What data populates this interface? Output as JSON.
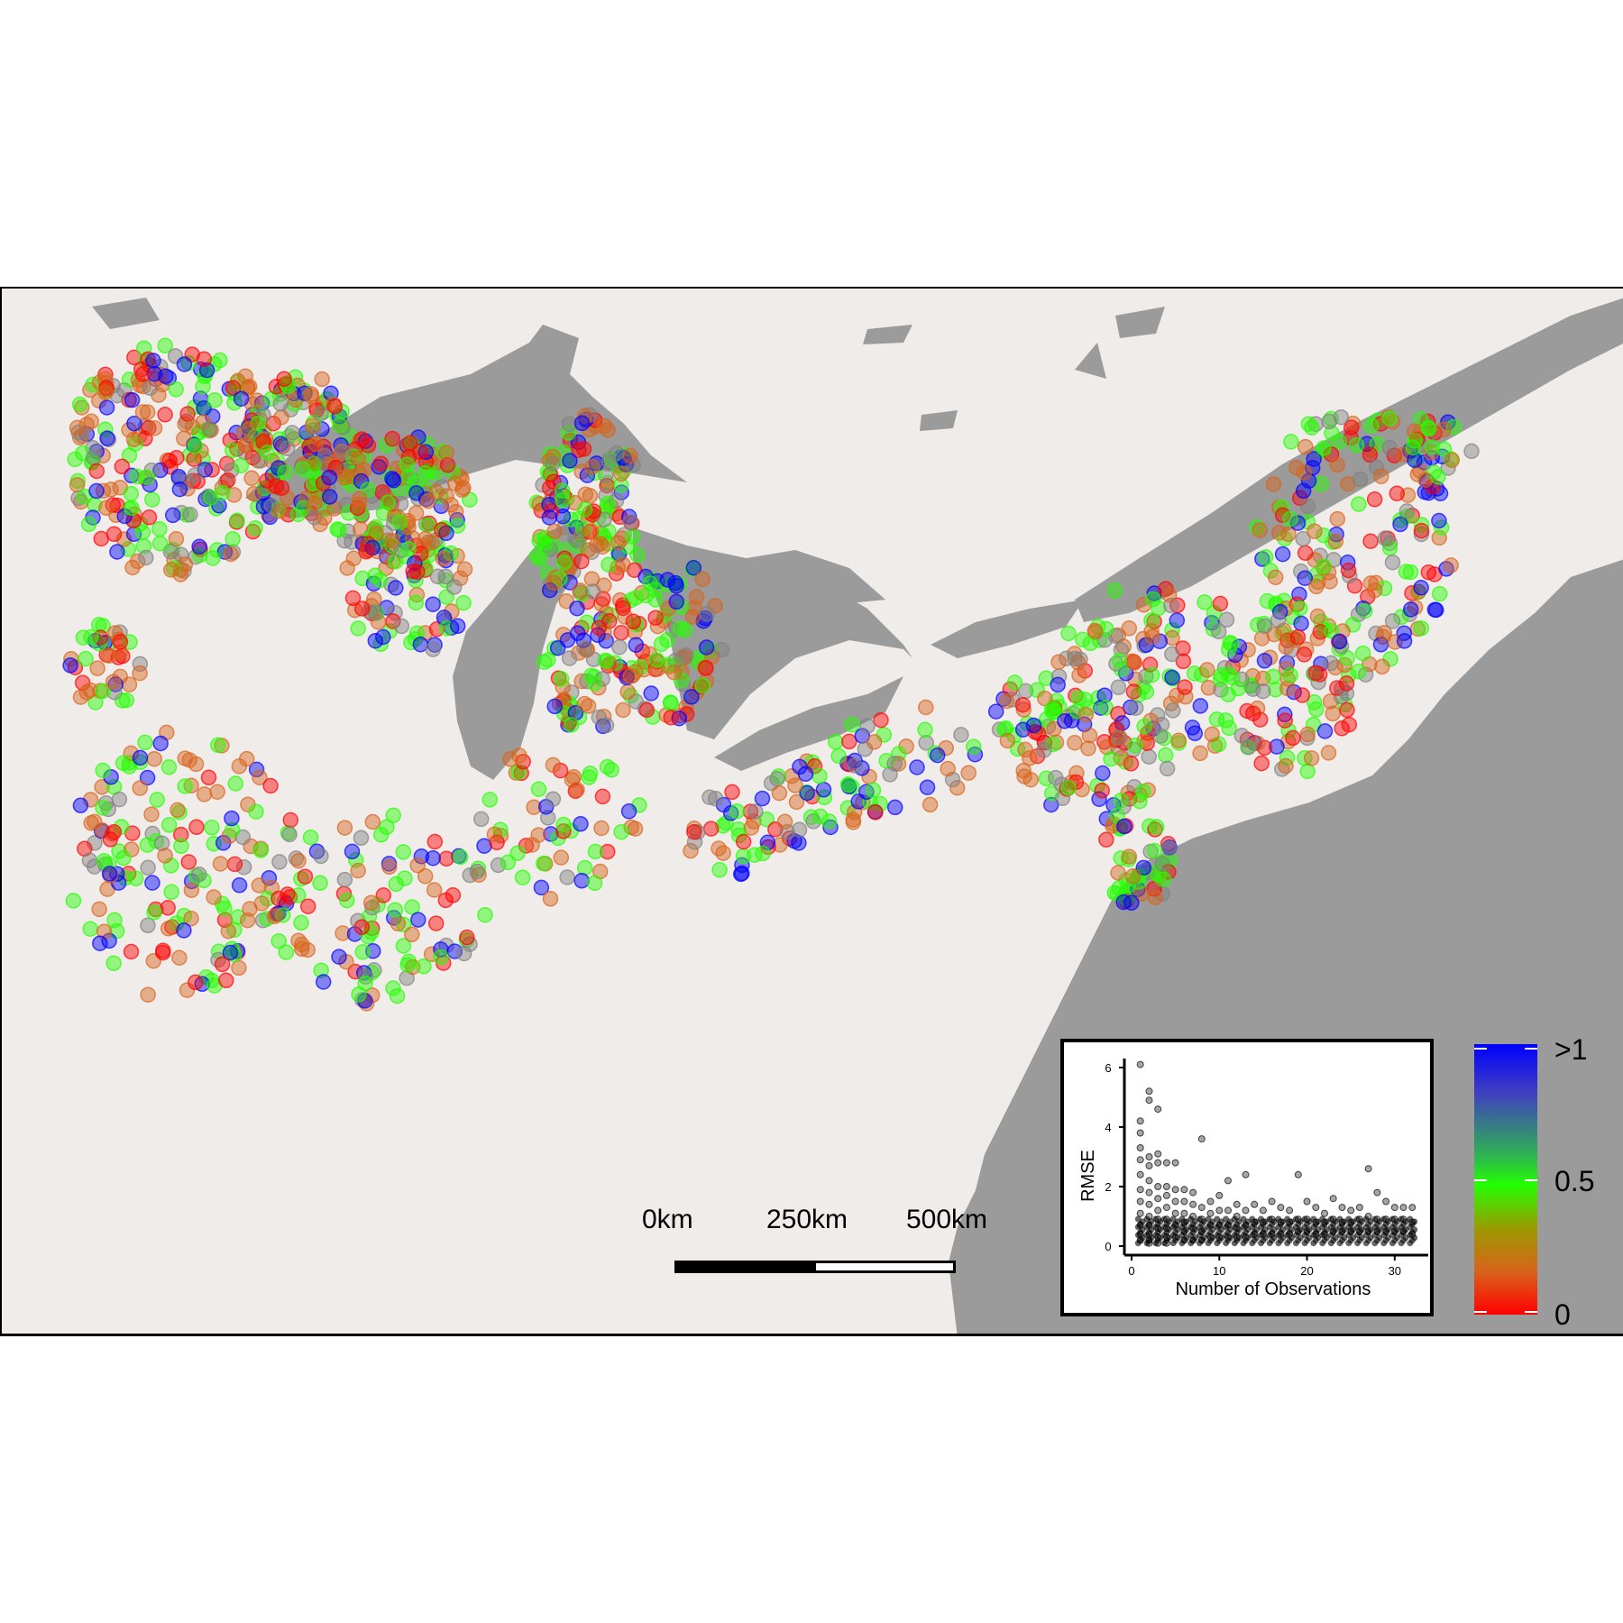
{
  "map": {
    "scale_labels": [
      "0km",
      "250km",
      "500km"
    ],
    "point_colors": {
      "low": "#ff0000",
      "mid_low": "#d8641b",
      "mid": "#24ff00",
      "mid_high": "#808080",
      "high": "#0000ff"
    },
    "land_color": "#efecea",
    "water_color": "#9b9b9b"
  },
  "legend": {
    "labels": [
      ">1",
      "0.5",
      "0"
    ]
  },
  "chart_data": {
    "type": "scatter",
    "title": "",
    "xlabel": "Number of Observations",
    "ylabel": "RMSE",
    "xlim": [
      0,
      33
    ],
    "ylim": [
      0,
      6.3
    ],
    "x_ticks": [
      "0",
      "10",
      "20",
      "30"
    ],
    "y_ticks": [
      "0",
      "2",
      "4",
      "6"
    ],
    "series": [
      {
        "x": [
          1,
          1,
          1,
          1,
          1,
          1,
          1,
          1,
          1,
          1,
          1,
          1,
          2,
          2,
          2,
          2,
          2,
          2,
          2,
          2,
          2,
          2,
          2,
          2,
          3,
          3,
          3,
          3,
          3,
          3,
          3,
          3,
          3,
          3,
          4,
          4,
          4,
          4,
          4,
          4,
          4,
          4,
          5,
          5,
          5,
          5,
          5,
          5,
          6,
          6,
          6,
          6,
          6,
          6,
          7,
          7,
          7,
          7,
          7,
          8,
          8,
          8,
          8,
          8,
          9,
          9,
          9,
          9,
          10,
          10,
          10,
          10,
          11,
          11,
          11,
          11,
          12,
          12,
          12,
          12,
          13,
          13,
          13,
          13,
          14,
          14,
          14,
          15,
          15,
          15,
          16,
          16,
          16,
          17,
          17,
          17,
          18,
          18,
          18,
          19,
          19,
          19,
          20,
          20,
          20,
          21,
          21,
          21,
          22,
          22,
          22,
          23,
          23,
          23,
          24,
          24,
          24,
          25,
          25,
          25,
          26,
          26,
          26,
          27,
          27,
          27,
          28,
          28,
          28,
          29,
          29,
          29,
          30,
          30,
          30,
          31,
          31,
          31,
          32,
          32,
          32
        ],
        "y": [
          6.1,
          4.2,
          3.8,
          3.3,
          2.9,
          2.4,
          1.9,
          1.5,
          1.1,
          0.7,
          0.4,
          0.2,
          5.2,
          4.9,
          3.0,
          2.7,
          2.2,
          1.8,
          1.4,
          1.0,
          0.7,
          0.4,
          0.2,
          0.1,
          4.6,
          3.1,
          2.8,
          2.0,
          1.6,
          1.2,
          0.9,
          0.6,
          0.3,
          0.1,
          2.8,
          2.0,
          1.7,
          1.3,
          0.9,
          0.6,
          0.3,
          0.1,
          2.8,
          1.9,
          1.5,
          1.1,
          0.7,
          0.3,
          1.9,
          1.5,
          1.1,
          0.8,
          0.5,
          0.2,
          1.8,
          1.4,
          1.0,
          0.6,
          0.2,
          3.6,
          1.3,
          0.9,
          0.5,
          0.2,
          1.5,
          1.1,
          0.7,
          0.3,
          1.7,
          1.2,
          0.7,
          0.3,
          2.2,
          1.2,
          0.7,
          0.3,
          1.4,
          1.0,
          0.6,
          0.3,
          2.4,
          1.2,
          0.7,
          0.3,
          1.4,
          0.8,
          0.4,
          1.2,
          0.8,
          0.4,
          1.5,
          0.9,
          0.4,
          1.3,
          0.8,
          0.4,
          1.2,
          0.8,
          0.4,
          2.4,
          0.9,
          0.5,
          1.5,
          0.9,
          0.5,
          1.3,
          0.8,
          0.4,
          1.1,
          0.8,
          0.4,
          1.6,
          0.9,
          0.5,
          1.3,
          0.8,
          0.5,
          1.2,
          0.8,
          0.5,
          1.3,
          0.9,
          0.5,
          2.6,
          1.0,
          0.5,
          1.8,
          0.9,
          0.5,
          1.5,
          0.9,
          0.5,
          1.3,
          0.9,
          0.5,
          1.3,
          0.9,
          0.5,
          1.3,
          0.8,
          0.4
        ]
      }
    ]
  }
}
